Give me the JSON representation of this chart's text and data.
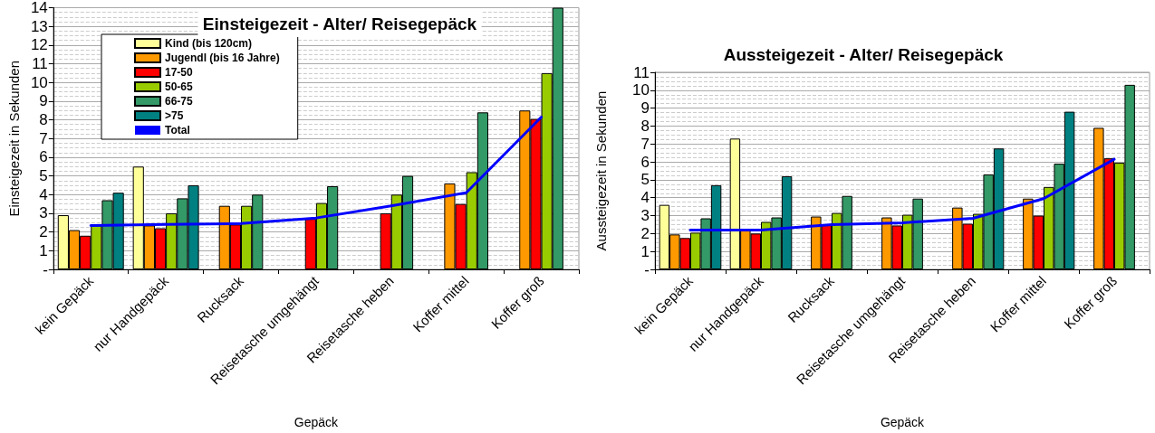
{
  "chart_data": [
    {
      "type": "bar",
      "title": "Einsteigezeit - Alter/ Reisegepäck",
      "xlabel": "Gepäck",
      "ylabel": "Einsteigezeit in Sekunden",
      "categories": [
        "kein Gepäck",
        "nur Handgepäck",
        "Rucksack",
        "Reisetasche umgehängt",
        "Reisetasche heben",
        "Koffer mittel",
        "Koffer groß"
      ],
      "ylim": [
        0,
        14
      ],
      "yticks": [
        {
          "value": 0,
          "label": "-"
        },
        1,
        2,
        3,
        4,
        5,
        6,
        7,
        8,
        9,
        10,
        11,
        12,
        13,
        14
      ],
      "grid": "y",
      "legend": "top left",
      "marker": "none",
      "line_style": "solid",
      "series": [
        {
          "name": "Kind (bis 120cm)",
          "color": "#ffff99",
          "values": [
            2.9,
            5.5,
            null,
            null,
            null,
            null,
            null
          ]
        },
        {
          "name": "Jugendl (bis 16 Jahre)",
          "color": "#ff9900",
          "values": [
            2.1,
            2.35,
            3.4,
            null,
            null,
            4.6,
            8.5
          ]
        },
        {
          "name": "17-50",
          "color": "#ff0000",
          "values": [
            1.8,
            2.2,
            2.4,
            2.7,
            3.0,
            3.5,
            8.05
          ]
        },
        {
          "name": "50-65",
          "color": "#99cc00",
          "values": [
            2.35,
            3.0,
            3.4,
            3.55,
            4.0,
            5.2,
            10.5
          ]
        },
        {
          "name": "66-75",
          "color": "#339966",
          "values": [
            3.7,
            3.8,
            4.0,
            4.45,
            5.0,
            8.4,
            14.0
          ]
        },
        {
          "name": ">75",
          "color": "#008080",
          "values": [
            4.1,
            4.5,
            null,
            null,
            null,
            null,
            null
          ]
        },
        {
          "name": "Total",
          "type": "line",
          "color": "#0000ff",
          "values": [
            2.35,
            2.4,
            2.45,
            2.75,
            3.4,
            4.1,
            8.15
          ]
        }
      ]
    },
    {
      "type": "bar",
      "title": "Aussteigezeit - Alter/ Reisegepäck",
      "xlabel": "Gepäck",
      "ylabel": "Aussteigezeit in Sekunden",
      "categories": [
        "kein Gepäck",
        "nur Handgepäck",
        "Rucksack",
        "Reisetasche umgehängt",
        "Reisetasche heben",
        "Koffer mittel",
        "Koffer groß"
      ],
      "ylim": [
        0,
        11
      ],
      "yticks": [
        {
          "value": 0,
          "label": "-"
        },
        1,
        2,
        3,
        4,
        5,
        6,
        7,
        8,
        9,
        10,
        11
      ],
      "grid": "y",
      "marker": "none",
      "line_style": "solid",
      "series": [
        {
          "color": "#ffff99",
          "values": [
            3.6,
            7.3,
            null,
            null,
            null,
            null,
            null
          ]
        },
        {
          "color": "#ff9900",
          "values": [
            1.95,
            2.25,
            2.95,
            2.9,
            3.45,
            3.95,
            7.9
          ]
        },
        {
          "color": "#ff0000",
          "values": [
            1.75,
            2.0,
            2.5,
            2.45,
            2.55,
            3.0,
            6.2
          ]
        },
        {
          "color": "#99cc00",
          "values": [
            2.05,
            2.65,
            3.15,
            3.05,
            3.1,
            4.6,
            5.95
          ]
        },
        {
          "color": "#339966",
          "values": [
            2.85,
            2.9,
            4.1,
            3.95,
            5.3,
            5.9,
            10.3
          ]
        },
        {
          "color": "#008080",
          "values": [
            4.7,
            5.2,
            null,
            null,
            6.75,
            8.8,
            null
          ]
        },
        {
          "type": "line",
          "color": "#0000ff",
          "values": [
            2.2,
            2.2,
            2.5,
            2.6,
            2.85,
            3.95,
            6.15
          ]
        }
      ]
    }
  ]
}
